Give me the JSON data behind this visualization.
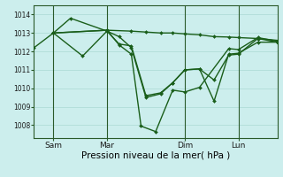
{
  "xlabel": "Pression niveau de la mer( hPa )",
  "bg_color": "#cceeed",
  "grid_color": "#b0ddd8",
  "line_color": "#1a5e1a",
  "ylim": [
    1007.3,
    1014.5
  ],
  "xlim": [
    0,
    100
  ],
  "xtick_positions": [
    8,
    30,
    62,
    84
  ],
  "xtick_labels": [
    "Sam",
    "Mar",
    "Dim",
    "Lun"
  ],
  "vline_positions": [
    8,
    30,
    62,
    84
  ],
  "ytick_positions": [
    1008,
    1009,
    1010,
    1011,
    1012,
    1013,
    1014
  ],
  "series": [
    {
      "x": [
        0,
        8,
        20,
        30,
        35,
        40,
        46,
        52,
        57,
        62,
        68,
        74,
        80,
        84,
        92,
        100
      ],
      "y": [
        1012.2,
        1013.0,
        1011.75,
        1013.1,
        1012.4,
        1012.3,
        1009.6,
        1009.75,
        1010.3,
        1011.0,
        1011.05,
        1009.3,
        1011.85,
        1011.9,
        1012.5,
        1012.5
      ]
    },
    {
      "x": [
        8,
        15,
        30,
        35,
        40,
        46,
        52,
        57,
        62,
        68,
        74,
        80,
        84,
        92,
        100
      ],
      "y": [
        1013.0,
        1013.8,
        1013.1,
        1012.8,
        1012.2,
        1009.5,
        1009.7,
        1010.3,
        1011.0,
        1011.05,
        1010.45,
        1011.8,
        1011.85,
        1012.7,
        1012.5
      ]
    },
    {
      "x": [
        8,
        30,
        40,
        46,
        52,
        57,
        62,
        68,
        74,
        80,
        84,
        92,
        100
      ],
      "y": [
        1013.0,
        1013.15,
        1013.1,
        1013.05,
        1013.0,
        1013.0,
        1012.95,
        1012.9,
        1012.8,
        1012.78,
        1012.75,
        1012.7,
        1012.6
      ]
    },
    {
      "x": [
        8,
        30,
        35,
        40,
        44,
        50,
        57,
        62,
        68,
        80,
        84,
        92,
        100
      ],
      "y": [
        1013.0,
        1013.15,
        1012.35,
        1011.85,
        1007.95,
        1007.65,
        1009.9,
        1009.8,
        1010.05,
        1012.15,
        1012.1,
        1012.75,
        1012.55
      ]
    }
  ]
}
